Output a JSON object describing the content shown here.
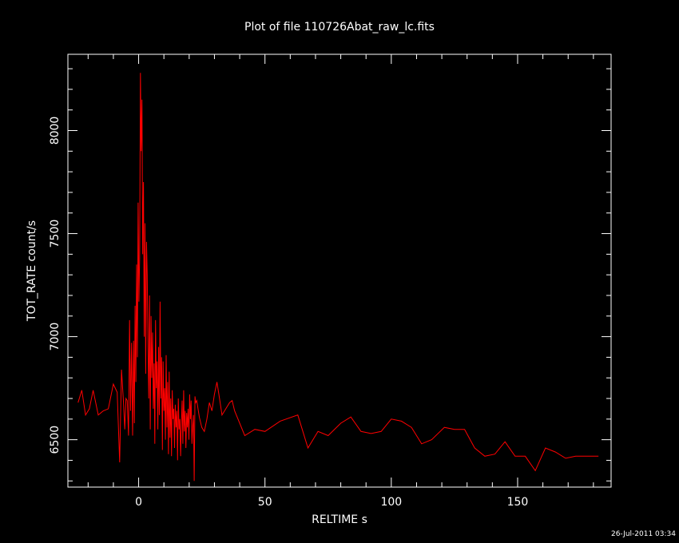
{
  "chart_data": {
    "type": "line",
    "title": "Plot of file 110726Abat_raw_lc.fits",
    "xlabel": "RELTIME  s",
    "ylabel": "TOT_RATE  count/s",
    "timestamp": "26-Jul-2011 03:34",
    "xlim": [
      -28,
      187
    ],
    "ylim": [
      6270,
      8370
    ],
    "x_major_ticks": [
      0,
      50,
      100,
      150
    ],
    "x_tick_labels": [
      "0",
      "50",
      "100",
      "150"
    ],
    "y_major_ticks": [
      6500,
      7000,
      7500,
      8000
    ],
    "y_tick_labels": [
      "6500",
      "7000",
      "7500",
      "8000"
    ],
    "grid": false,
    "colors": {
      "background": "#000000",
      "axes": "#ffffff",
      "series": "#ff0000"
    },
    "series": [
      {
        "x": [
          -24,
          -22.5,
          -21,
          -19.5,
          -18,
          -16,
          -14,
          -12,
          -10,
          -8.5,
          -7.5,
          -6.8,
          -6,
          -5.5,
          -5,
          -4.5,
          -4,
          -3.6,
          -3.2,
          -2.8,
          -2.4,
          -2,
          -1.7,
          -1.4,
          -1.1,
          -0.8,
          -0.5,
          -0.2,
          0.1,
          0.4,
          0.7,
          1,
          1.3,
          1.6,
          1.9,
          2.2,
          2.5,
          2.8,
          3.1,
          3.4,
          3.7,
          4,
          4.3,
          4.6,
          4.9,
          5.2,
          5.5,
          5.8,
          6.1,
          6.4,
          6.7,
          7,
          7.3,
          7.6,
          7.9,
          8.2,
          8.5,
          8.8,
          9.1,
          9.4,
          9.7,
          10,
          10.3,
          10.6,
          10.9,
          11.2,
          11.5,
          11.8,
          12.1,
          12.4,
          12.7,
          13,
          13.3,
          13.6,
          13.9,
          14.2,
          14.5,
          14.8,
          15.1,
          15.4,
          15.7,
          16,
          16.3,
          16.6,
          16.9,
          17.2,
          17.5,
          17.8,
          18.1,
          18.4,
          18.7,
          19,
          19.3,
          19.6,
          19.9,
          20.2,
          20.5,
          20.8,
          21.1,
          21.4,
          21.7,
          22,
          22.3,
          22.6,
          23,
          23.5,
          24,
          25,
          26,
          27,
          28,
          29,
          30,
          31,
          32,
          33,
          34,
          35,
          36,
          37,
          38,
          42,
          46,
          50,
          56,
          63,
          67,
          71,
          75,
          80,
          84,
          88,
          92,
          96,
          100,
          104,
          108,
          112,
          116,
          121,
          125,
          129,
          133,
          137,
          141,
          145,
          149,
          153,
          157,
          161,
          165,
          169,
          173,
          177,
          182
        ],
        "y": [
          6680,
          6740,
          6620,
          6650,
          6740,
          6620,
          6640,
          6650,
          6770,
          6730,
          6390,
          6840,
          6680,
          6550,
          6700,
          6690,
          6520,
          7080,
          6640,
          6970,
          6520,
          6980,
          6580,
          7150,
          6780,
          7350,
          6900,
          7650,
          7170,
          7380,
          8280,
          7900,
          8150,
          7400,
          7750,
          7000,
          7550,
          6820,
          7460,
          7300,
          6950,
          6700,
          7200,
          6550,
          7100,
          6800,
          7020,
          6650,
          6870,
          6480,
          7080,
          6750,
          6880,
          6550,
          6950,
          6620,
          7170,
          6700,
          6900,
          6450,
          6880,
          6640,
          6750,
          6500,
          6910,
          6560,
          6780,
          6430,
          6830,
          6510,
          6700,
          6420,
          6740,
          6600,
          6650,
          6460,
          6670,
          6560,
          6640,
          6400,
          6700,
          6550,
          6600,
          6420,
          6580,
          6690,
          6480,
          6740,
          6540,
          6640,
          6460,
          6630,
          6560,
          6650,
          6500,
          6720,
          6600,
          6690,
          6480,
          6560,
          6620,
          6300,
          6710,
          6680,
          6690,
          6650,
          6610,
          6560,
          6540,
          6600,
          6680,
          6640,
          6720,
          6780,
          6700,
          6620,
          6640,
          6660,
          6680,
          6690,
          6640,
          6520,
          6550,
          6540,
          6590,
          6620,
          6460,
          6540,
          6520,
          6580,
          6610,
          6540,
          6530,
          6540,
          6600,
          6590,
          6560,
          6480,
          6500,
          6560,
          6550,
          6550,
          6460,
          6420,
          6430,
          6490,
          6420,
          6420,
          6350,
          6460,
          6440,
          6410,
          6420,
          6420,
          6420
        ]
      }
    ]
  }
}
